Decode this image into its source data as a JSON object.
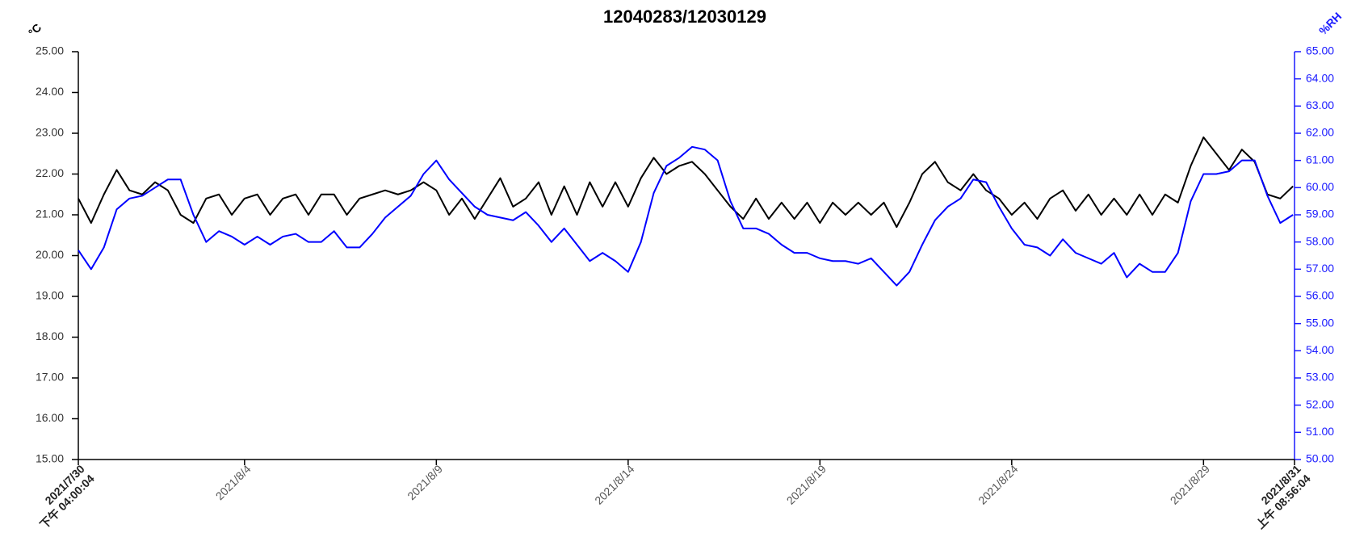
{
  "chart_data": {
    "type": "line",
    "title": "12040283/12030129",
    "y_label": "°C",
    "y2_label": "%RH",
    "xlim": [
      "2021/7/30 16:00:04",
      "2021/8/31 08:56:04"
    ],
    "xticks": [
      {
        "value": "2021/7/30 16:00:04",
        "label": "2021/7/30",
        "sublabel": "下午 04:00:04"
      },
      "2021/8/4",
      "2021/8/9",
      "2021/8/14",
      "2021/8/19",
      "2021/8/24",
      "2021/8/29",
      {
        "value": "2021/8/31 08:56:04",
        "label": "2021/8/31",
        "sublabel": "上午 08:56:04"
      }
    ],
    "ylim": [
      15,
      25
    ],
    "yticks": [
      {
        "value": 15,
        "label": "15.00"
      },
      {
        "value": 16,
        "label": "16.00"
      },
      {
        "value": 17,
        "label": "17.00"
      },
      {
        "value": 18,
        "label": "18.00"
      },
      {
        "value": 19,
        "label": "19.00"
      },
      {
        "value": 20,
        "label": "20.00"
      },
      {
        "value": 21,
        "label": "21.00"
      },
      {
        "value": 22,
        "label": "22.00"
      },
      {
        "value": 23,
        "label": "23.00"
      },
      {
        "value": 24,
        "label": "24.00"
      },
      {
        "value": 25,
        "label": "25.00"
      }
    ],
    "y2lim": [
      50,
      65
    ],
    "y2ticks": [
      {
        "value": 50,
        "label": "50.00"
      },
      {
        "value": 51,
        "label": "51.00"
      },
      {
        "value": 52,
        "label": "52.00"
      },
      {
        "value": 53,
        "label": "53.00"
      },
      {
        "value": 54,
        "label": "54.00"
      },
      {
        "value": 55,
        "label": "55.00"
      },
      {
        "value": 56,
        "label": "56.00"
      },
      {
        "value": 57,
        "label": "57.00"
      },
      {
        "value": 58,
        "label": "58.00"
      },
      {
        "value": 59,
        "label": "59.00"
      },
      {
        "value": 60,
        "label": "60.00"
      },
      {
        "value": 61,
        "label": "61.00"
      },
      {
        "value": 62,
        "label": "62.00"
      },
      {
        "value": 63,
        "label": "63.00"
      },
      {
        "value": 64,
        "label": "64.00"
      },
      {
        "value": 65,
        "label": "65.00"
      }
    ],
    "y_color": "#000000",
    "y2_color": "#1a1aff",
    "x": [
      "2021/7/30 16:00",
      "2021/7/31 00:00",
      "2021/7/31 08:00",
      "2021/7/31 16:00",
      "2021/8/1 00:00",
      "2021/8/1 08:00",
      "2021/8/1 16:00",
      "2021/8/2 00:00",
      "2021/8/2 08:00",
      "2021/8/2 16:00",
      "2021/8/3 00:00",
      "2021/8/3 08:00",
      "2021/8/3 16:00",
      "2021/8/4 00:00",
      "2021/8/4 08:00",
      "2021/8/4 16:00",
      "2021/8/5 00:00",
      "2021/8/5 08:00",
      "2021/8/5 16:00",
      "2021/8/6 00:00",
      "2021/8/6 08:00",
      "2021/8/6 16:00",
      "2021/8/7 00:00",
      "2021/8/7 08:00",
      "2021/8/7 16:00",
      "2021/8/8 00:00",
      "2021/8/8 08:00",
      "2021/8/8 16:00",
      "2021/8/9 00:00",
      "2021/8/9 08:00",
      "2021/8/9 16:00",
      "2021/8/10 00:00",
      "2021/8/10 08:00",
      "2021/8/10 16:00",
      "2021/8/11 00:00",
      "2021/8/11 08:00",
      "2021/8/11 16:00",
      "2021/8/12 00:00",
      "2021/8/12 08:00",
      "2021/8/12 16:00",
      "2021/8/13 00:00",
      "2021/8/13 08:00",
      "2021/8/13 16:00",
      "2021/8/14 00:00",
      "2021/8/14 08:00",
      "2021/8/14 16:00",
      "2021/8/15 00:00",
      "2021/8/15 08:00",
      "2021/8/15 16:00",
      "2021/8/16 00:00",
      "2021/8/16 08:00",
      "2021/8/16 16:00",
      "2021/8/17 00:00",
      "2021/8/17 08:00",
      "2021/8/17 16:00",
      "2021/8/18 00:00",
      "2021/8/18 08:00",
      "2021/8/18 16:00",
      "2021/8/19 00:00",
      "2021/8/19 08:00",
      "2021/8/19 16:00",
      "2021/8/20 00:00",
      "2021/8/20 08:00",
      "2021/8/20 16:00",
      "2021/8/21 00:00",
      "2021/8/21 08:00",
      "2021/8/21 16:00",
      "2021/8/22 00:00",
      "2021/8/22 08:00",
      "2021/8/22 16:00",
      "2021/8/23 00:00",
      "2021/8/23 08:00",
      "2021/8/23 16:00",
      "2021/8/24 00:00",
      "2021/8/24 08:00",
      "2021/8/24 16:00",
      "2021/8/25 00:00",
      "2021/8/25 08:00",
      "2021/8/25 16:00",
      "2021/8/26 00:00",
      "2021/8/26 08:00",
      "2021/8/26 16:00",
      "2021/8/27 00:00",
      "2021/8/27 08:00",
      "2021/8/27 16:00",
      "2021/8/28 00:00",
      "2021/8/28 08:00",
      "2021/8/28 16:00",
      "2021/8/29 00:00",
      "2021/8/29 08:00",
      "2021/8/29 16:00",
      "2021/8/30 00:00",
      "2021/8/30 08:00",
      "2021/8/30 16:00",
      "2021/8/31 00:00",
      "2021/8/31 08:00"
    ],
    "series": [
      {
        "color": "#000000",
        "values": [
          21.4,
          20.8,
          21.5,
          22.1,
          21.6,
          21.5,
          21.8,
          21.6,
          21.0,
          20.8,
          21.4,
          21.5,
          21.0,
          21.4,
          21.5,
          21.0,
          21.4,
          21.5,
          21.0,
          21.5,
          21.5,
          21.0,
          21.4,
          21.5,
          21.6,
          21.5,
          21.6,
          21.8,
          21.6,
          21.0,
          21.4,
          20.9,
          21.4,
          21.9,
          21.2,
          21.4,
          21.8,
          21.0,
          21.7,
          21.0,
          21.8,
          21.2,
          21.8,
          21.2,
          21.9,
          22.4,
          22.0,
          22.2,
          22.3,
          22.0,
          21.6,
          21.2,
          20.9,
          21.4,
          20.9,
          21.3,
          20.9,
          21.3,
          20.8,
          21.3,
          21.0,
          21.3,
          21.0,
          21.3,
          20.7,
          21.3,
          22.0,
          22.3,
          21.8,
          21.6,
          22.0,
          21.6,
          21.4,
          21.0,
          21.3,
          20.9,
          21.4,
          21.6,
          21.1,
          21.5,
          21.0,
          21.4,
          21.0,
          21.5,
          21.0,
          21.5,
          21.3,
          22.2,
          22.9,
          22.5,
          22.1,
          22.6,
          22.3,
          21.5,
          21.4,
          21.7
        ]
      },
      {
        "color": "#0000ff",
        "axis": "y2",
        "values": [
          57.7,
          57.0,
          57.8,
          59.2,
          59.6,
          59.7,
          60.0,
          60.3,
          60.3,
          59.0,
          58.0,
          58.4,
          58.2,
          57.9,
          58.2,
          57.9,
          58.2,
          58.3,
          58.0,
          58.0,
          58.4,
          57.8,
          57.8,
          58.3,
          58.9,
          59.3,
          59.7,
          60.5,
          61.0,
          60.3,
          59.8,
          59.3,
          59.0,
          58.9,
          58.8,
          59.1,
          58.6,
          58.0,
          58.5,
          57.9,
          57.3,
          57.6,
          57.3,
          56.9,
          58.0,
          59.8,
          60.8,
          61.1,
          61.5,
          61.4,
          61.0,
          59.5,
          58.5,
          58.5,
          58.3,
          57.9,
          57.6,
          57.6,
          57.4,
          57.3,
          57.3,
          57.2,
          57.4,
          56.9,
          56.4,
          56.9,
          57.9,
          58.8,
          59.3,
          59.6,
          60.3,
          60.2,
          59.3,
          58.5,
          57.9,
          57.8,
          57.5,
          58.1,
          57.6,
          57.4,
          57.2,
          57.6,
          56.7,
          57.2,
          56.9,
          56.9,
          57.6,
          59.5,
          60.5,
          60.5,
          60.6,
          61.0,
          61.0,
          59.7,
          58.7,
          59.0
        ]
      }
    ]
  }
}
